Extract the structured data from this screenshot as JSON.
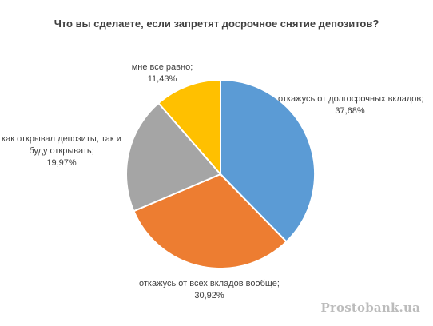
{
  "chart_data": {
    "type": "pie",
    "title": "Что вы сделаете, если запретят досрочное снятие депозитов?",
    "slices": [
      {
        "label": "откажусь от долгосрочных вкладов;",
        "value": 37.68,
        "value_text": "37,68%",
        "color": "#5b9bd5"
      },
      {
        "label": "откажусь от всех вкладов вообще;",
        "value": 30.92,
        "value_text": "30,92%",
        "color": "#ed7d31"
      },
      {
        "label": "как открывал депозиты, так и буду открывать;",
        "value": 19.97,
        "value_text": "19,97%",
        "color": "#a5a5a5"
      },
      {
        "label": "мне все равно;",
        "value": 11.43,
        "value_text": "11,43%",
        "color": "#ffc000"
      }
    ],
    "start": "12 o'clock",
    "direction": "clockwise",
    "legend": "none"
  },
  "watermark": "Prostobank.ua"
}
